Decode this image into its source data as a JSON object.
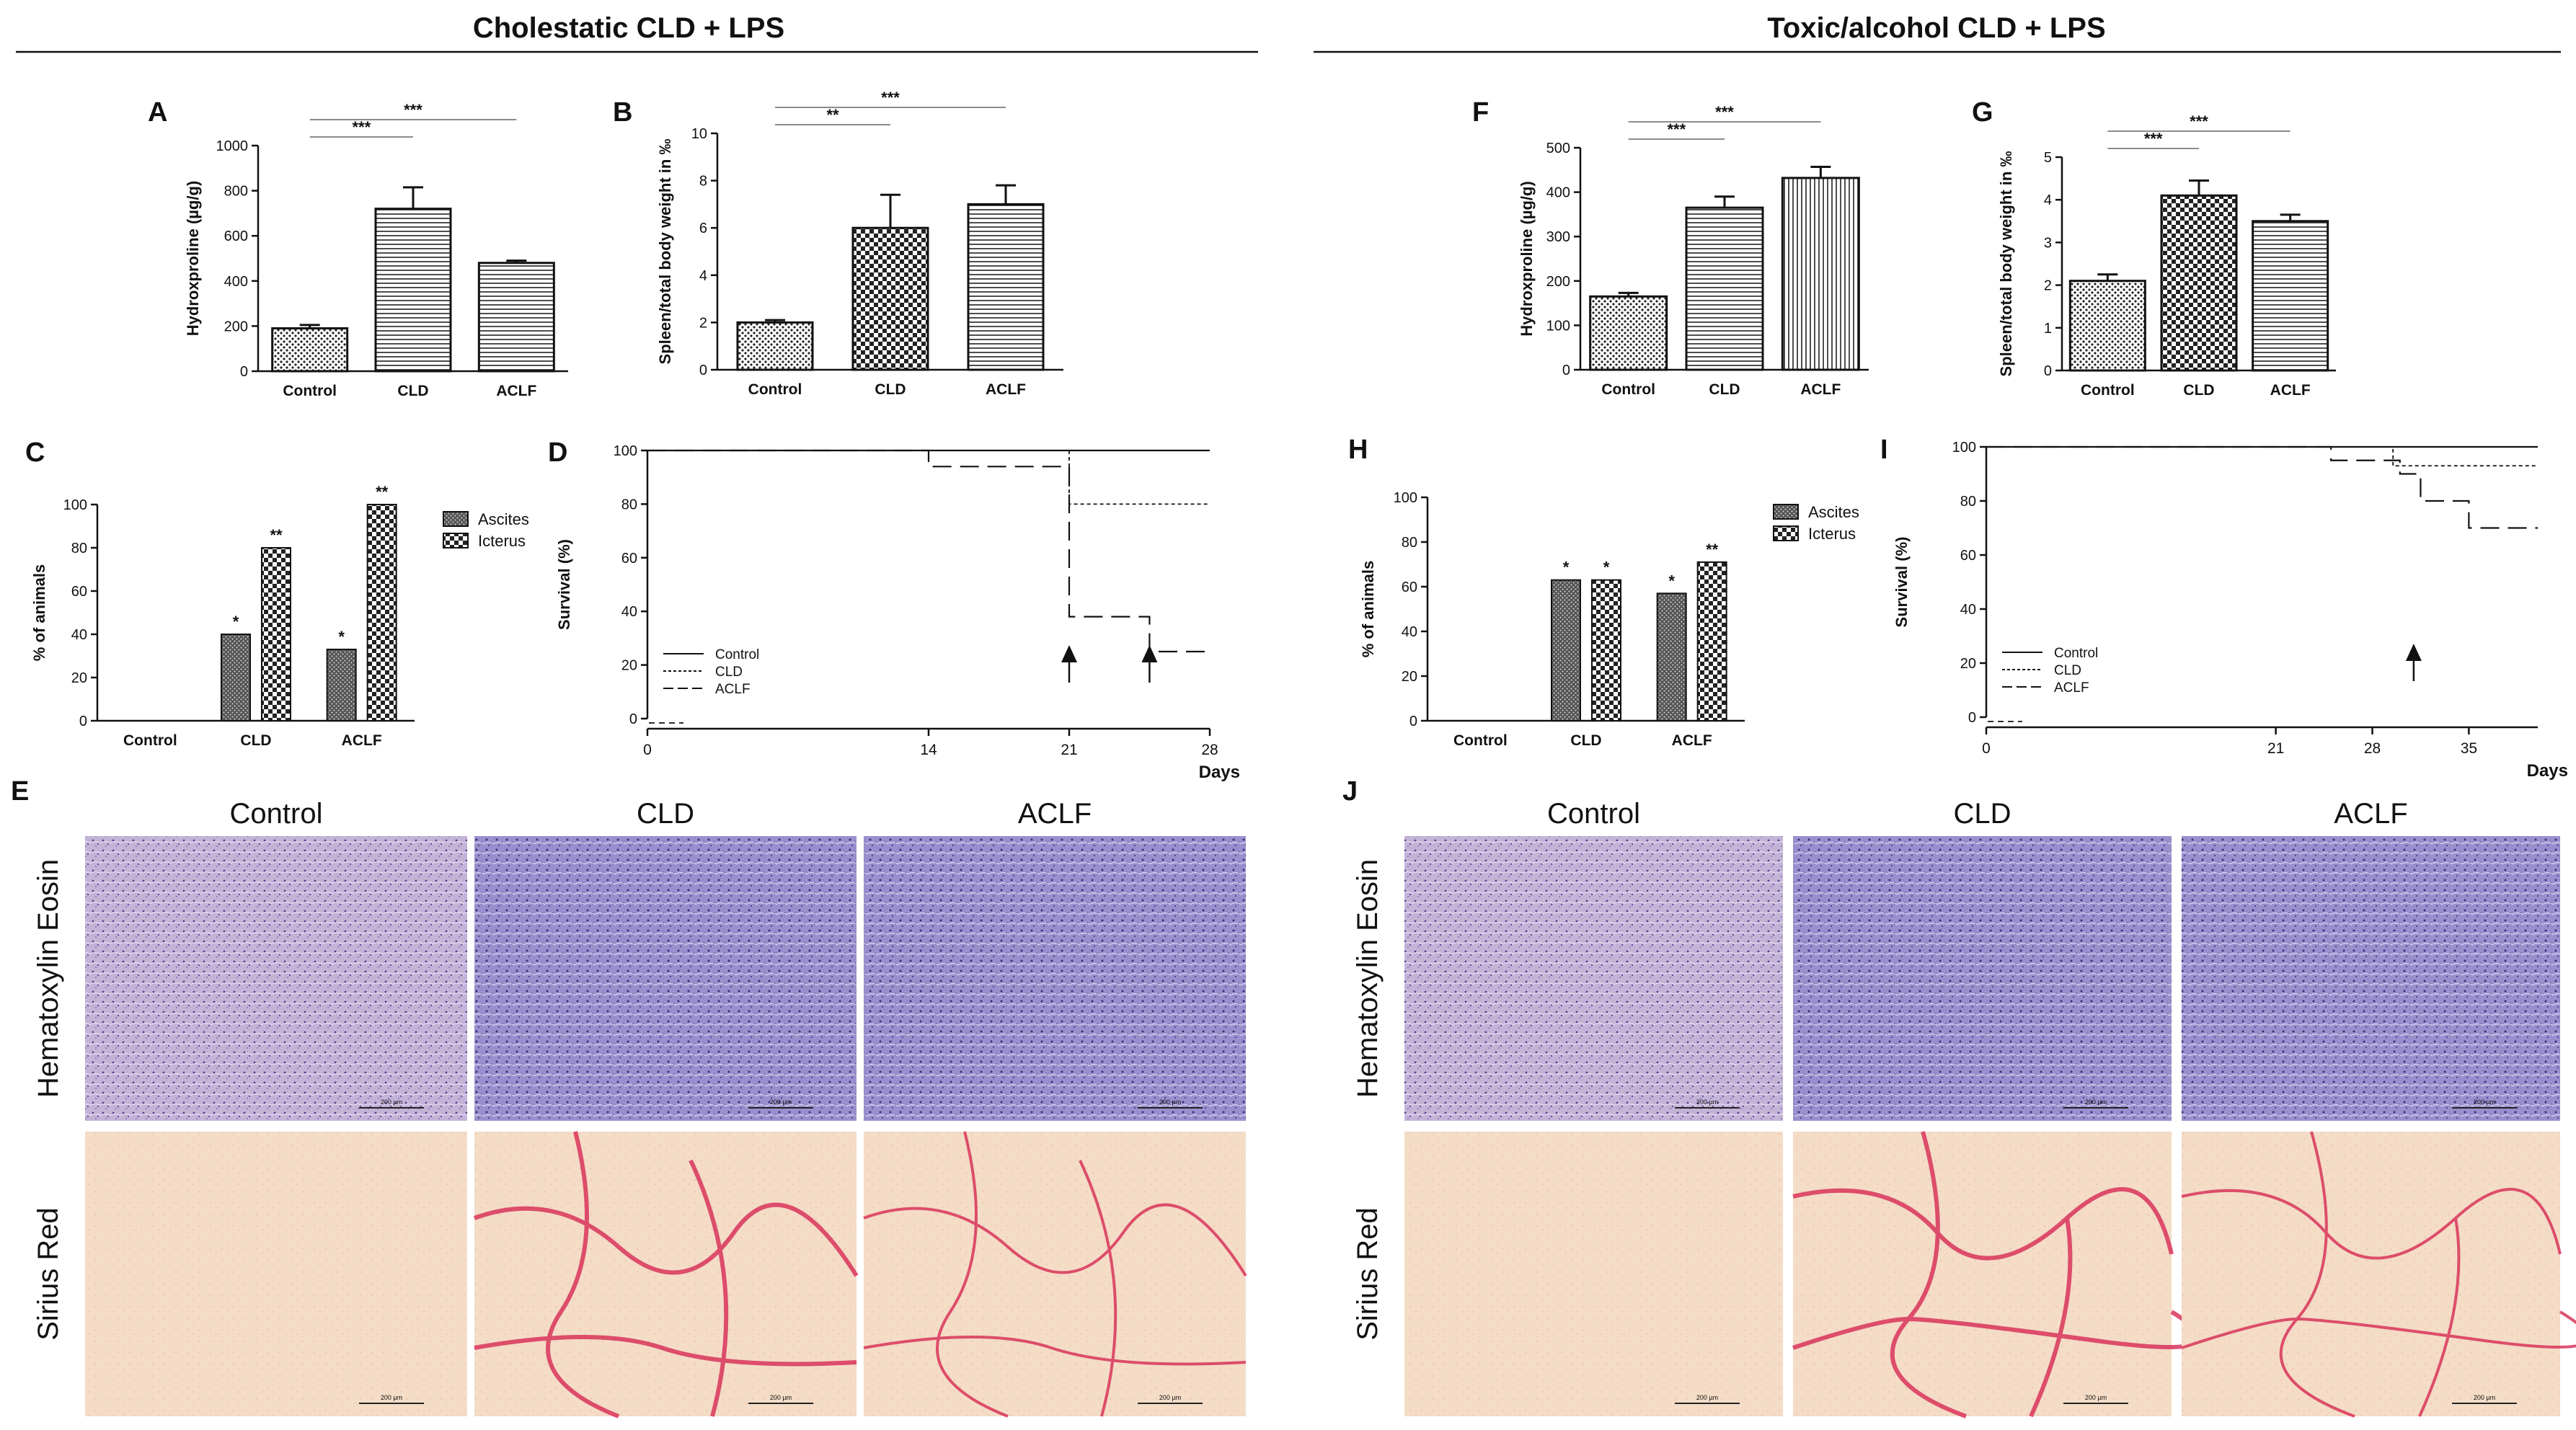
{
  "colors": {
    "axis": "#111111",
    "bar_fill": "#ffffff",
    "he_fill": "#b8a8d0",
    "he_fill_dense": "#8e87c8",
    "sirius_fill": "#f3d7c2",
    "sirius_fiber": "#d8345a"
  },
  "sections": [
    {
      "title": "Cholestatic CLD + LPS"
    },
    {
      "title": "Toxic/alcohol CLD + LPS"
    }
  ],
  "chart_data": [
    {
      "panel": "A",
      "type": "bar",
      "categories": [
        "Control",
        "CLD",
        "ACLF"
      ],
      "values": [
        190,
        720,
        480
      ],
      "errors": [
        15,
        95,
        10
      ],
      "patterns": [
        "dots",
        "hlines",
        "hlines"
      ],
      "ylabel": "Hydroxproline (µg/g)",
      "ylim": [
        0,
        1000
      ],
      "yticks": [
        0,
        200,
        400,
        600,
        800,
        1000
      ],
      "significance": [
        {
          "from": 0,
          "to": 1,
          "label": "***"
        },
        {
          "from": 0,
          "to": 2,
          "label": "***"
        }
      ]
    },
    {
      "panel": "B",
      "type": "bar",
      "categories": [
        "Control",
        "CLD",
        "ACLF"
      ],
      "values": [
        2.0,
        6.0,
        7.0
      ],
      "errors": [
        0.1,
        1.4,
        0.8
      ],
      "patterns": [
        "dots",
        "checker",
        "hlines"
      ],
      "ylabel": "Spleen/total body weight in ‰",
      "ylim": [
        0,
        10
      ],
      "yticks": [
        0,
        2,
        4,
        6,
        8,
        10
      ],
      "significance": [
        {
          "from": 0,
          "to": 1,
          "label": "**"
        },
        {
          "from": 0,
          "to": 2,
          "label": "***"
        }
      ]
    },
    {
      "panel": "C",
      "type": "bar",
      "categories": [
        "Control",
        "CLD",
        "ACLF"
      ],
      "series": [
        {
          "name": "Ascites",
          "values": [
            0,
            40,
            33
          ],
          "stars": [
            "",
            "*",
            "*"
          ],
          "pattern": "dense"
        },
        {
          "name": "Icterus",
          "values": [
            0,
            80,
            100
          ],
          "stars": [
            "",
            "**",
            "**"
          ],
          "pattern": "checker"
        }
      ],
      "ylabel": "% of animals",
      "ylim": [
        0,
        100
      ],
      "yticks": [
        0,
        20,
        40,
        60,
        80,
        100
      ],
      "legend": "top-right"
    },
    {
      "panel": "D",
      "type": "line",
      "ylabel": "Survival (%)",
      "xlabel": "Days",
      "xlim": [
        0,
        28
      ],
      "xticks": [
        0,
        14,
        21,
        28
      ],
      "ylim": [
        0,
        100
      ],
      "yticks": [
        0,
        20,
        40,
        60,
        80,
        100
      ],
      "series": [
        {
          "name": "Control",
          "style": "solid",
          "points": [
            [
              0,
              100
            ],
            [
              28,
              100
            ]
          ]
        },
        {
          "name": "CLD",
          "style": "dotted",
          "points": [
            [
              0,
              100
            ],
            [
              21,
              100
            ],
            [
              21,
              80
            ],
            [
              28,
              80
            ]
          ]
        },
        {
          "name": "ACLF",
          "style": "dashed",
          "points": [
            [
              0,
              100
            ],
            [
              14,
              100
            ],
            [
              14,
              94
            ],
            [
              21,
              94
            ],
            [
              21,
              38
            ],
            [
              25,
              38
            ],
            [
              25,
              25
            ],
            [
              28,
              25
            ]
          ]
        }
      ],
      "arrows_at": [
        21,
        25
      ],
      "legend": "bottom-left"
    },
    {
      "panel": "F",
      "type": "bar",
      "categories": [
        "Control",
        "CLD",
        "ACLF"
      ],
      "values": [
        165,
        365,
        432
      ],
      "errors": [
        8,
        25,
        25
      ],
      "patterns": [
        "dots",
        "hlines",
        "vlines"
      ],
      "ylabel": "Hydroxproline (µg/g)",
      "ylim": [
        0,
        500
      ],
      "yticks": [
        0,
        100,
        200,
        300,
        400,
        500
      ],
      "significance": [
        {
          "from": 0,
          "to": 1,
          "label": "***"
        },
        {
          "from": 0,
          "to": 2,
          "label": "***"
        }
      ]
    },
    {
      "panel": "G",
      "type": "bar",
      "categories": [
        "Control",
        "CLD",
        "ACLF"
      ],
      "values": [
        2.1,
        4.1,
        3.5
      ],
      "errors": [
        0.15,
        0.35,
        0.15
      ],
      "patterns": [
        "dots",
        "checker",
        "hlines"
      ],
      "ylabel": "Spleen/total body weight in ‰",
      "ylim": [
        0,
        5
      ],
      "yticks": [
        0,
        1,
        2,
        3,
        4,
        5
      ],
      "significance": [
        {
          "from": 0,
          "to": 1,
          "label": "***"
        },
        {
          "from": 0,
          "to": 2,
          "label": "***"
        }
      ]
    },
    {
      "panel": "H",
      "type": "bar",
      "categories": [
        "Control",
        "CLD",
        "ACLF"
      ],
      "series": [
        {
          "name": "Ascites",
          "values": [
            0,
            63,
            57
          ],
          "stars": [
            "",
            "*",
            "*"
          ],
          "pattern": "dense"
        },
        {
          "name": "Icterus",
          "values": [
            0,
            63,
            71
          ],
          "stars": [
            "",
            "*",
            "**"
          ],
          "pattern": "checker"
        }
      ],
      "ylabel": "% of animals",
      "ylim": [
        0,
        100
      ],
      "yticks": [
        0,
        20,
        40,
        60,
        80,
        100
      ],
      "legend": "top-right"
    },
    {
      "panel": "I",
      "type": "line",
      "ylabel": "Survival (%)",
      "xlabel": "Days",
      "xlim": [
        0,
        40
      ],
      "xticks": [
        0,
        21,
        28,
        35
      ],
      "ylim": [
        0,
        100
      ],
      "yticks": [
        0,
        20,
        40,
        60,
        80,
        100
      ],
      "series": [
        {
          "name": "Control",
          "style": "solid",
          "points": [
            [
              0,
              100
            ],
            [
              40,
              100
            ]
          ]
        },
        {
          "name": "CLD",
          "style": "dotted",
          "points": [
            [
              0,
              100
            ],
            [
              29.5,
              100
            ],
            [
              29.5,
              93
            ],
            [
              40,
              93
            ]
          ]
        },
        {
          "name": "ACLF",
          "style": "dashed",
          "points": [
            [
              0,
              100
            ],
            [
              25,
              100
            ],
            [
              25,
              95
            ],
            [
              30,
              95
            ],
            [
              30,
              90
            ],
            [
              31.5,
              90
            ],
            [
              31.5,
              80
            ],
            [
              35,
              80
            ],
            [
              35,
              70
            ],
            [
              40,
              70
            ]
          ]
        }
      ],
      "arrows_at": [
        31
      ],
      "legend": "bottom-left"
    }
  ],
  "histology": [
    {
      "panel": "E",
      "columns": [
        "Control",
        "CLD",
        "ACLF"
      ],
      "rows": [
        "Hematoxylin Eosin",
        "Sirius Red"
      ],
      "scalebar": "200 µm"
    },
    {
      "panel": "J",
      "columns": [
        "Control",
        "CLD",
        "ACLF"
      ],
      "rows": [
        "Hematoxylin Eosin",
        "Sirius Red"
      ],
      "scalebar": "200 µm"
    }
  ]
}
